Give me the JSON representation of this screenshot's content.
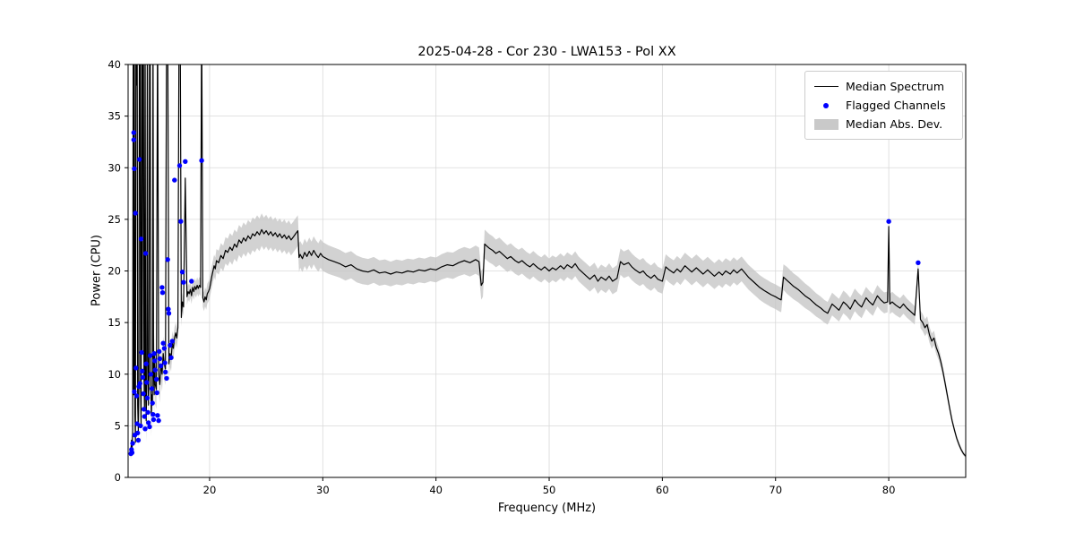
{
  "chart_data": {
    "type": "line",
    "title": "2025-04-28 - Cor 230 - LWA153 - Pol XX",
    "xlabel": "Frequency (MHz)",
    "ylabel": "Power (CPU)",
    "xlim": [
      12.8,
      86.8
    ],
    "ylim": [
      0,
      40
    ],
    "xticks": [
      20,
      30,
      40,
      50,
      60,
      70,
      80
    ],
    "yticks": [
      0,
      5,
      10,
      15,
      20,
      25,
      30,
      35,
      40
    ],
    "grid": true,
    "legend": {
      "position": "upper right",
      "entries": [
        {
          "label": "Median Spectrum",
          "type": "line",
          "color": "#000000"
        },
        {
          "label": "Flagged Channels",
          "type": "marker",
          "color": "#0000ff"
        },
        {
          "label": "Median Abs. Dev.",
          "type": "patch",
          "color": "#c9c9c9"
        }
      ]
    },
    "colors": {
      "median": "#000000",
      "flagged": "#0000ff",
      "band": "#c3c3c3",
      "grid": "#d9d9d9"
    },
    "median_spectrum": [
      [
        12.95,
        2.1
      ],
      [
        13.0,
        2.8
      ],
      [
        13.05,
        2.3
      ],
      [
        13.1,
        3.6
      ],
      [
        13.15,
        2.6
      ],
      [
        13.2,
        4.5
      ],
      [
        13.25,
        45
      ],
      [
        13.3,
        8.0
      ],
      [
        13.35,
        45
      ],
      [
        13.4,
        6.0
      ],
      [
        13.45,
        3.4
      ],
      [
        13.5,
        45
      ],
      [
        13.55,
        38
      ],
      [
        13.6,
        45
      ],
      [
        13.65,
        7.0
      ],
      [
        13.7,
        4.5
      ],
      [
        13.75,
        8.5
      ],
      [
        13.8,
        45
      ],
      [
        13.85,
        45
      ],
      [
        13.9,
        9.0
      ],
      [
        13.95,
        5.0
      ],
      [
        14.0,
        45
      ],
      [
        14.05,
        12
      ],
      [
        14.1,
        45
      ],
      [
        14.15,
        45
      ],
      [
        14.2,
        10
      ],
      [
        14.25,
        6.5
      ],
      [
        14.3,
        45
      ],
      [
        14.35,
        8.0
      ],
      [
        14.4,
        5.5
      ],
      [
        14.45,
        9.0
      ],
      [
        14.5,
        45
      ],
      [
        14.55,
        12
      ],
      [
        14.6,
        7.0
      ],
      [
        14.65,
        10
      ],
      [
        14.7,
        45
      ],
      [
        14.75,
        45
      ],
      [
        14.8,
        9.0
      ],
      [
        14.85,
        6.0
      ],
      [
        14.9,
        8.0
      ],
      [
        14.95,
        7.0
      ],
      [
        15.0,
        45
      ],
      [
        15.05,
        10
      ],
      [
        15.1,
        8.0
      ],
      [
        15.15,
        12
      ],
      [
        15.2,
        9.0
      ],
      [
        15.3,
        8.5
      ],
      [
        15.4,
        45
      ],
      [
        15.5,
        10
      ],
      [
        15.6,
        9.0
      ],
      [
        15.7,
        11
      ],
      [
        15.8,
        10
      ],
      [
        15.9,
        12
      ],
      [
        16.0,
        11
      ],
      [
        16.1,
        10.5
      ],
      [
        16.2,
        45
      ],
      [
        16.3,
        45
      ],
      [
        16.4,
        11
      ],
      [
        16.5,
        12
      ],
      [
        16.6,
        11.5
      ],
      [
        16.7,
        13
      ],
      [
        16.8,
        12.5
      ],
      [
        16.9,
        13.5
      ],
      [
        17.0,
        14
      ],
      [
        17.1,
        13.5
      ],
      [
        17.2,
        14.5
      ],
      [
        17.3,
        45
      ],
      [
        17.4,
        45
      ],
      [
        17.5,
        15.5
      ],
      [
        17.6,
        17
      ],
      [
        17.7,
        16.5
      ],
      [
        17.85,
        29
      ],
      [
        18.0,
        17.5
      ],
      [
        18.1,
        18
      ],
      [
        18.2,
        17.8
      ],
      [
        18.3,
        18.2
      ],
      [
        18.4,
        17.6
      ],
      [
        18.5,
        18.4
      ],
      [
        18.6,
        18.0
      ],
      [
        18.7,
        18.5
      ],
      [
        18.8,
        18.2
      ],
      [
        18.9,
        18.6
      ],
      [
        19.0,
        18.3
      ],
      [
        19.1,
        18.6
      ],
      [
        19.2,
        18.4
      ],
      [
        19.3,
        45
      ],
      [
        19.4,
        17.4
      ],
      [
        19.5,
        17.0
      ],
      [
        19.6,
        17.5
      ],
      [
        19.7,
        17.2
      ],
      [
        19.8,
        17.8
      ],
      [
        19.9,
        18.0
      ],
      [
        20.0,
        18.3
      ],
      [
        20.2,
        19.5
      ],
      [
        20.4,
        20.5
      ],
      [
        20.5,
        20.2
      ],
      [
        20.6,
        21.0
      ],
      [
        20.8,
        20.8
      ],
      [
        21.0,
        21.5
      ],
      [
        21.2,
        21.2
      ],
      [
        21.4,
        22.0
      ],
      [
        21.6,
        21.8
      ],
      [
        21.8,
        22.3
      ],
      [
        22.0,
        22.0
      ],
      [
        22.2,
        22.6
      ],
      [
        22.4,
        22.3
      ],
      [
        22.6,
        23.0
      ],
      [
        22.8,
        22.7
      ],
      [
        23.0,
        23.2
      ],
      [
        23.2,
        22.9
      ],
      [
        23.4,
        23.4
      ],
      [
        23.6,
        23.1
      ],
      [
        23.8,
        23.6
      ],
      [
        24.0,
        23.4
      ],
      [
        24.2,
        23.8
      ],
      [
        24.4,
        23.5
      ],
      [
        24.6,
        24.0
      ],
      [
        24.8,
        23.6
      ],
      [
        25.0,
        23.9
      ],
      [
        25.2,
        23.5
      ],
      [
        25.4,
        23.8
      ],
      [
        25.6,
        23.4
      ],
      [
        25.8,
        23.7
      ],
      [
        26.0,
        23.3
      ],
      [
        26.2,
        23.6
      ],
      [
        26.4,
        23.2
      ],
      [
        26.6,
        23.5
      ],
      [
        26.8,
        23.1
      ],
      [
        27.0,
        23.4
      ],
      [
        27.2,
        23.0
      ],
      [
        27.4,
        23.3
      ],
      [
        27.6,
        23.6
      ],
      [
        27.8,
        23.9
      ],
      [
        27.9,
        21.3
      ],
      [
        28.0,
        21.6
      ],
      [
        28.2,
        21.2
      ],
      [
        28.4,
        21.8
      ],
      [
        28.6,
        21.4
      ],
      [
        28.8,
        21.9
      ],
      [
        29.0,
        21.5
      ],
      [
        29.2,
        22.0
      ],
      [
        29.4,
        21.6
      ],
      [
        29.6,
        21.3
      ],
      [
        29.8,
        21.7
      ],
      [
        30.0,
        21.4
      ],
      [
        30.5,
        21.1
      ],
      [
        31.0,
        20.9
      ],
      [
        31.5,
        20.7
      ],
      [
        32.0,
        20.4
      ],
      [
        32.5,
        20.6
      ],
      [
        33.0,
        20.2
      ],
      [
        33.5,
        20.0
      ],
      [
        34.0,
        19.9
      ],
      [
        34.5,
        20.1
      ],
      [
        35.0,
        19.8
      ],
      [
        35.5,
        19.9
      ],
      [
        36.0,
        19.7
      ],
      [
        36.5,
        19.9
      ],
      [
        37.0,
        19.8
      ],
      [
        37.5,
        20.0
      ],
      [
        38.0,
        19.9
      ],
      [
        38.5,
        20.1
      ],
      [
        39.0,
        20.0
      ],
      [
        39.5,
        20.2
      ],
      [
        40.0,
        20.1
      ],
      [
        40.5,
        20.4
      ],
      [
        41.0,
        20.6
      ],
      [
        41.5,
        20.5
      ],
      [
        42.0,
        20.8
      ],
      [
        42.5,
        21.0
      ],
      [
        43.0,
        20.8
      ],
      [
        43.5,
        21.1
      ],
      [
        43.8,
        20.9
      ],
      [
        44.0,
        18.6
      ],
      [
        44.15,
        18.9
      ],
      [
        44.3,
        22.6
      ],
      [
        44.5,
        22.4
      ],
      [
        44.7,
        22.2
      ],
      [
        45.0,
        22.0
      ],
      [
        45.3,
        21.7
      ],
      [
        45.6,
        21.9
      ],
      [
        46.0,
        21.5
      ],
      [
        46.3,
        21.2
      ],
      [
        46.6,
        21.4
      ],
      [
        47.0,
        21.0
      ],
      [
        47.3,
        20.8
      ],
      [
        47.6,
        21.0
      ],
      [
        48.0,
        20.6
      ],
      [
        48.3,
        20.4
      ],
      [
        48.6,
        20.7
      ],
      [
        49.0,
        20.3
      ],
      [
        49.3,
        20.1
      ],
      [
        49.6,
        20.4
      ],
      [
        50.0,
        20.0
      ],
      [
        50.3,
        20.3
      ],
      [
        50.6,
        20.1
      ],
      [
        51.0,
        20.5
      ],
      [
        51.3,
        20.2
      ],
      [
        51.6,
        20.6
      ],
      [
        52.0,
        20.3
      ],
      [
        52.3,
        20.7
      ],
      [
        52.6,
        20.2
      ],
      [
        53.0,
        19.8
      ],
      [
        53.3,
        19.5
      ],
      [
        53.6,
        19.2
      ],
      [
        54.0,
        19.6
      ],
      [
        54.3,
        19.0
      ],
      [
        54.6,
        19.4
      ],
      [
        55.0,
        19.1
      ],
      [
        55.3,
        19.5
      ],
      [
        55.6,
        19.0
      ],
      [
        56.0,
        19.3
      ],
      [
        56.3,
        20.9
      ],
      [
        56.6,
        20.6
      ],
      [
        57.0,
        20.8
      ],
      [
        57.3,
        20.4
      ],
      [
        57.6,
        20.1
      ],
      [
        58.0,
        19.8
      ],
      [
        58.3,
        20.0
      ],
      [
        58.6,
        19.6
      ],
      [
        59.0,
        19.3
      ],
      [
        59.3,
        19.6
      ],
      [
        59.6,
        19.2
      ],
      [
        60.0,
        19.0
      ],
      [
        60.3,
        20.4
      ],
      [
        60.6,
        20.1
      ],
      [
        61.0,
        19.8
      ],
      [
        61.3,
        20.2
      ],
      [
        61.6,
        19.9
      ],
      [
        62.0,
        20.5
      ],
      [
        62.3,
        20.2
      ],
      [
        62.6,
        19.9
      ],
      [
        63.0,
        20.3
      ],
      [
        63.3,
        20.0
      ],
      [
        63.6,
        19.7
      ],
      [
        64.0,
        20.1
      ],
      [
        64.3,
        19.8
      ],
      [
        64.6,
        19.5
      ],
      [
        65.0,
        19.9
      ],
      [
        65.3,
        19.6
      ],
      [
        65.6,
        20.0
      ],
      [
        66.0,
        19.7
      ],
      [
        66.3,
        20.1
      ],
      [
        66.6,
        19.8
      ],
      [
        67.0,
        20.2
      ],
      [
        67.3,
        19.8
      ],
      [
        67.6,
        19.4
      ],
      [
        68.0,
        19.0
      ],
      [
        68.3,
        18.7
      ],
      [
        68.6,
        18.4
      ],
      [
        69.0,
        18.1
      ],
      [
        69.3,
        17.9
      ],
      [
        69.6,
        17.7
      ],
      [
        70.0,
        17.5
      ],
      [
        70.3,
        17.3
      ],
      [
        70.5,
        17.2
      ],
      [
        70.7,
        19.4
      ],
      [
        71.0,
        19.1
      ],
      [
        71.3,
        18.8
      ],
      [
        71.6,
        18.5
      ],
      [
        72.0,
        18.2
      ],
      [
        72.3,
        17.9
      ],
      [
        72.6,
        17.6
      ],
      [
        73.0,
        17.3
      ],
      [
        73.3,
        17.0
      ],
      [
        73.6,
        16.7
      ],
      [
        74.0,
        16.4
      ],
      [
        74.3,
        16.1
      ],
      [
        74.6,
        15.9
      ],
      [
        75.0,
        16.8
      ],
      [
        75.3,
        16.5
      ],
      [
        75.6,
        16.2
      ],
      [
        76.0,
        17.0
      ],
      [
        76.3,
        16.7
      ],
      [
        76.6,
        16.3
      ],
      [
        77.0,
        17.2
      ],
      [
        77.3,
        16.8
      ],
      [
        77.6,
        16.5
      ],
      [
        78.0,
        17.4
      ],
      [
        78.3,
        17.0
      ],
      [
        78.6,
        16.7
      ],
      [
        79.0,
        17.6
      ],
      [
        79.3,
        17.2
      ],
      [
        79.6,
        16.9
      ],
      [
        79.9,
        17.0
      ],
      [
        80.0,
        24.3
      ],
      [
        80.1,
        16.8
      ],
      [
        80.3,
        17.0
      ],
      [
        80.6,
        16.7
      ],
      [
        81.0,
        16.4
      ],
      [
        81.3,
        16.8
      ],
      [
        81.6,
        16.4
      ],
      [
        82.0,
        16.0
      ],
      [
        82.3,
        15.7
      ],
      [
        82.6,
        20.2
      ],
      [
        82.8,
        15.3
      ],
      [
        83.0,
        15.0
      ],
      [
        83.2,
        14.5
      ],
      [
        83.4,
        14.8
      ],
      [
        83.6,
        13.8
      ],
      [
        83.8,
        13.2
      ],
      [
        84.0,
        13.5
      ],
      [
        84.2,
        12.6
      ],
      [
        84.4,
        12.0
      ],
      [
        84.6,
        11.2
      ],
      [
        84.8,
        10.2
      ],
      [
        85.0,
        9.0
      ],
      [
        85.2,
        7.8
      ],
      [
        85.4,
        6.6
      ],
      [
        85.6,
        5.5
      ],
      [
        85.8,
        4.6
      ],
      [
        86.0,
        3.8
      ],
      [
        86.2,
        3.2
      ],
      [
        86.4,
        2.7
      ],
      [
        86.6,
        2.3
      ],
      [
        86.8,
        2.05
      ],
      [
        87.0,
        1.95
      ]
    ],
    "mad_anchor_points": [
      [
        12.9,
        0.4
      ],
      [
        13.5,
        1.2
      ],
      [
        14.0,
        2.0
      ],
      [
        15.0,
        2.0
      ],
      [
        16.0,
        1.6
      ],
      [
        17.0,
        1.0
      ],
      [
        18.0,
        0.8
      ],
      [
        19.0,
        0.8
      ],
      [
        20.0,
        1.0
      ],
      [
        21.0,
        1.2
      ],
      [
        22.0,
        1.4
      ],
      [
        24.0,
        1.6
      ],
      [
        26.0,
        1.5
      ],
      [
        27.8,
        1.5
      ],
      [
        28.0,
        1.3
      ],
      [
        30.0,
        1.4
      ],
      [
        33.0,
        1.3
      ],
      [
        36.0,
        1.2
      ],
      [
        40.0,
        1.2
      ],
      [
        42.0,
        1.3
      ],
      [
        44.3,
        1.4
      ],
      [
        46.0,
        1.3
      ],
      [
        50.0,
        1.2
      ],
      [
        54.0,
        1.2
      ],
      [
        57.0,
        1.3
      ],
      [
        60.0,
        1.2
      ],
      [
        63.0,
        1.3
      ],
      [
        67.0,
        1.2
      ],
      [
        70.5,
        1.2
      ],
      [
        71.0,
        1.3
      ],
      [
        74.0,
        1.1
      ],
      [
        77.0,
        1.1
      ],
      [
        80.0,
        1.0
      ],
      [
        82.0,
        0.9
      ],
      [
        83.5,
        0.8
      ],
      [
        84.5,
        0.6
      ],
      [
        85.5,
        0.35
      ],
      [
        86.5,
        0.2
      ],
      [
        87.0,
        0.15
      ]
    ],
    "flagged_channels": [
      [
        13.05,
        2.3
      ],
      [
        13.1,
        2.7
      ],
      [
        13.15,
        2.4
      ],
      [
        13.2,
        3.3
      ],
      [
        13.3,
        33.4
      ],
      [
        13.3,
        32.7
      ],
      [
        13.35,
        29.9
      ],
      [
        13.35,
        8.3
      ],
      [
        13.4,
        4.1
      ],
      [
        13.45,
        25.6
      ],
      [
        13.5,
        10.6
      ],
      [
        13.55,
        7.9
      ],
      [
        13.6,
        5.2
      ],
      [
        13.65,
        4.3
      ],
      [
        13.7,
        3.6
      ],
      [
        13.75,
        8.8
      ],
      [
        13.8,
        30.8
      ],
      [
        13.85,
        9.1
      ],
      [
        13.9,
        5.0
      ],
      [
        13.95,
        23.1
      ],
      [
        14.0,
        12.1
      ],
      [
        14.05,
        10.3
      ],
      [
        14.1,
        9.7
      ],
      [
        14.15,
        8.1
      ],
      [
        14.2,
        6.6
      ],
      [
        14.25,
        5.9
      ],
      [
        14.3,
        4.7
      ],
      [
        14.35,
        21.7
      ],
      [
        14.4,
        11.0
      ],
      [
        14.45,
        9.2
      ],
      [
        14.5,
        7.7
      ],
      [
        14.55,
        6.3
      ],
      [
        14.6,
        5.3
      ],
      [
        14.7,
        4.9
      ],
      [
        14.75,
        11.8
      ],
      [
        14.8,
        10.0
      ],
      [
        14.9,
        8.6
      ],
      [
        14.95,
        7.2
      ],
      [
        15.0,
        6.1
      ],
      [
        15.05,
        5.6
      ],
      [
        15.1,
        12.0
      ],
      [
        15.15,
        11.3
      ],
      [
        15.2,
        10.4
      ],
      [
        15.3,
        9.5
      ],
      [
        15.35,
        8.2
      ],
      [
        15.4,
        6.0
      ],
      [
        15.5,
        5.5
      ],
      [
        15.55,
        12.2
      ],
      [
        15.6,
        11.5
      ],
      [
        15.7,
        10.8
      ],
      [
        15.8,
        18.4
      ],
      [
        15.85,
        17.9
      ],
      [
        15.9,
        13.0
      ],
      [
        16.0,
        12.5
      ],
      [
        16.05,
        11.1
      ],
      [
        16.1,
        10.2
      ],
      [
        16.2,
        9.6
      ],
      [
        16.3,
        21.1
      ],
      [
        16.35,
        16.3
      ],
      [
        16.4,
        15.9
      ],
      [
        16.5,
        12.8
      ],
      [
        16.6,
        11.6
      ],
      [
        16.7,
        13.2
      ],
      [
        16.9,
        28.8
      ],
      [
        17.35,
        30.2
      ],
      [
        17.45,
        24.8
      ],
      [
        17.6,
        19.9
      ],
      [
        17.7,
        18.9
      ],
      [
        17.85,
        30.6
      ],
      [
        18.4,
        19.0
      ],
      [
        19.3,
        30.7
      ],
      [
        80.0,
        24.8
      ],
      [
        82.6,
        20.8
      ]
    ]
  }
}
